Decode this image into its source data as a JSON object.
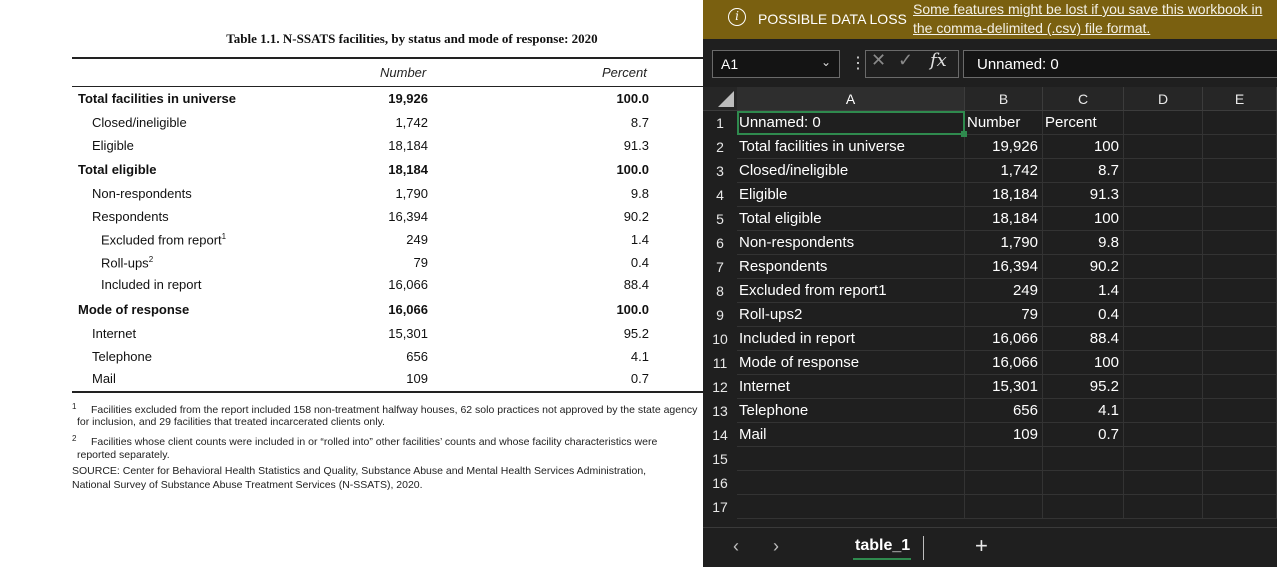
{
  "document": {
    "title": "Table 1.1. N-SSATS facilities, by status and mode of response: 2020",
    "headers": {
      "number": "Number",
      "percent": "Percent"
    },
    "rows": [
      {
        "label": "Total facilities in universe",
        "number": "19,926",
        "percent": "100.0",
        "bold": true,
        "indent": 0
      },
      {
        "label": "Closed/ineligible",
        "number": "1,742",
        "percent": "8.7",
        "bold": false,
        "indent": 1
      },
      {
        "label": "Eligible",
        "number": "18,184",
        "percent": "91.3",
        "bold": false,
        "indent": 1
      },
      {
        "label": "Total eligible",
        "number": "18,184",
        "percent": "100.0",
        "bold": true,
        "indent": 0
      },
      {
        "label": "Non-respondents",
        "number": "1,790",
        "percent": "9.8",
        "bold": false,
        "indent": 1
      },
      {
        "label": "Respondents",
        "number": "16,394",
        "percent": "90.2",
        "bold": false,
        "indent": 1
      },
      {
        "label": "Excluded from report",
        "sup": "1",
        "number": "249",
        "percent": "1.4",
        "bold": false,
        "indent": 2
      },
      {
        "label": "Roll-ups",
        "sup": "2",
        "number": "79",
        "percent": "0.4",
        "bold": false,
        "indent": 2
      },
      {
        "label": "Included in report",
        "number": "16,066",
        "percent": "88.4",
        "bold": false,
        "indent": 2
      },
      {
        "label": "Mode of response",
        "number": "16,066",
        "percent": "100.0",
        "bold": true,
        "indent": 0
      },
      {
        "label": "Internet",
        "number": "15,301",
        "percent": "95.2",
        "bold": false,
        "indent": 1
      },
      {
        "label": "Telephone",
        "number": "656",
        "percent": "4.1",
        "bold": false,
        "indent": 1
      },
      {
        "label": "Mail",
        "number": "109",
        "percent": "0.7",
        "bold": false,
        "indent": 1
      }
    ],
    "footnotes": {
      "fn1_mark": "1",
      "fn1_line1": "Facilities excluded from the report included 158 non-treatment halfway houses, 62 solo practices not approved by the state agency",
      "fn1_line2": "for inclusion, and 29 facilities that treated incarcerated clients only.",
      "fn2_mark": "2",
      "fn2_line1": "Facilities whose client counts were included in or “rolled into” other facilities’ counts and whose facility characteristics were",
      "fn2_line2": "reported separately.",
      "source_line1": "SOURCE: Center for Behavioral Health Statistics and Quality, Substance Abuse and Mental Health Services Administration,",
      "source_line2": "National Survey of Substance Abuse Treatment Services (N-SSATS), 2020."
    }
  },
  "excel": {
    "banner": {
      "icon": "info-icon",
      "icon_glyph": "i",
      "title": "POSSIBLE DATA LOSS",
      "message": "Some features might be lost if you save this workbook in the comma-delimited (.csv) file format.",
      "color": "#7a6010"
    },
    "name_box": "A1",
    "formula_value": "Unnamed: 0",
    "fx_label": "fx",
    "columns": [
      "A",
      "B",
      "C",
      "D",
      "E"
    ],
    "row_numbers": [
      "1",
      "2",
      "3",
      "4",
      "5",
      "6",
      "7",
      "8",
      "9",
      "10",
      "11",
      "12",
      "13",
      "14",
      "15",
      "16",
      "17"
    ],
    "cells": [
      [
        "Unnamed: 0",
        "Number",
        "Percent"
      ],
      [
        "Total facilities in universe",
        "19,926",
        "100"
      ],
      [
        "Closed/ineligible",
        "1,742",
        "8.7"
      ],
      [
        "Eligible",
        "18,184",
        "91.3"
      ],
      [
        "Total eligible",
        "18,184",
        "100"
      ],
      [
        "Non-respondents",
        "1,790",
        "9.8"
      ],
      [
        "Respondents",
        "16,394",
        "90.2"
      ],
      [
        "Excluded from report1",
        "249",
        "1.4"
      ],
      [
        "Roll-ups2",
        "79",
        "0.4"
      ],
      [
        "Included in report",
        "16,066",
        "88.4"
      ],
      [
        "Mode of response",
        "16,066",
        "100"
      ],
      [
        "Internet",
        "15,301",
        "95.2"
      ],
      [
        "Telephone",
        "656",
        "4.1"
      ],
      [
        "Mail",
        "109",
        "0.7"
      ]
    ],
    "sheet_tab": "table_1",
    "add_sheet": "+",
    "accent_color": "#2f8a4e"
  }
}
